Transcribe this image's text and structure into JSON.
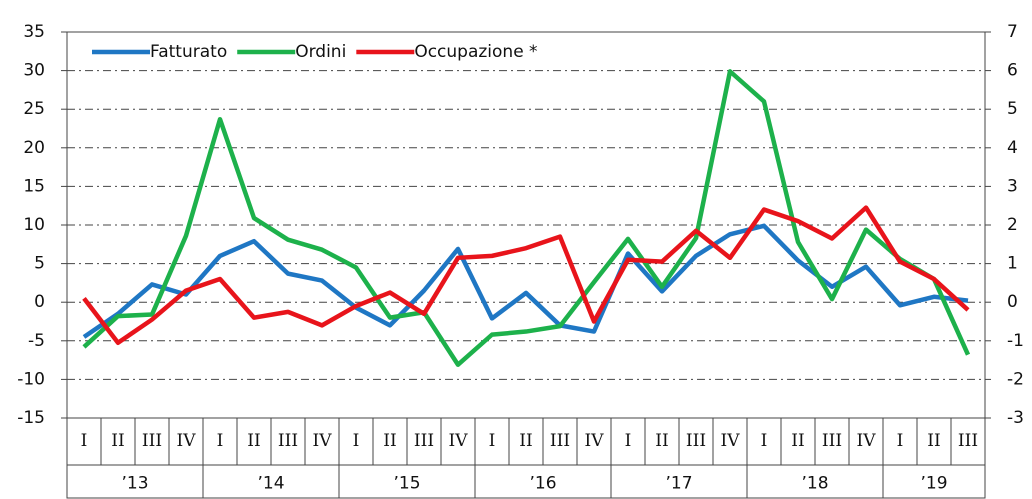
{
  "chart_data": {
    "type": "line",
    "groups": [
      {
        "label": "’13",
        "categories": [
          "I",
          "II",
          "III",
          "IV"
        ]
      },
      {
        "label": "’14",
        "categories": [
          "I",
          "II",
          "III",
          "IV"
        ]
      },
      {
        "label": "’15",
        "categories": [
          "I",
          "II",
          "III",
          "IV"
        ]
      },
      {
        "label": "’16",
        "categories": [
          "I",
          "II",
          "III",
          "IV"
        ]
      },
      {
        "label": "’17",
        "categories": [
          "I",
          "II",
          "III",
          "IV"
        ]
      },
      {
        "label": "’18",
        "categories": [
          "I",
          "II",
          "III",
          "IV"
        ]
      },
      {
        "label": "’19",
        "categories": [
          "I",
          "II",
          "III"
        ]
      }
    ],
    "series": [
      {
        "name": "Fatturato",
        "color": "#1f77c4",
        "values": [
          -4.5,
          -1.5,
          2.3,
          1.0,
          6.0,
          7.9,
          3.7,
          2.8,
          -0.7,
          -3.0,
          1.5,
          6.9,
          -2.1,
          1.2,
          -3.0,
          -3.8,
          6.3,
          1.4,
          6.0,
          8.8,
          9.9,
          5.4,
          2.0,
          4.6,
          -0.4,
          0.7,
          0.2
        ]
      },
      {
        "name": "Ordini",
        "color": "#1db14b",
        "values": [
          -5.8,
          -1.8,
          -1.6,
          8.6,
          23.7,
          10.9,
          8.1,
          6.8,
          4.5,
          -2.0,
          -1.3,
          -8.1,
          -4.2,
          -3.8,
          -3.1,
          2.6,
          8.2,
          2.0,
          8.3,
          29.9,
          26.0,
          7.8,
          0.4,
          9.4,
          5.6,
          3.0,
          -6.8
        ]
      },
      {
        "name": "Occupazione *",
        "color": "#e8141b",
        "axis": "y2",
        "values": [
          0.1,
          -1.05,
          -0.45,
          0.3,
          0.6,
          -0.4,
          -0.25,
          -0.6,
          -0.1,
          0.25,
          -0.3,
          1.15,
          1.2,
          1.4,
          1.7,
          -0.5,
          1.1,
          1.05,
          1.85,
          1.15,
          2.4,
          2.1,
          1.65,
          2.45,
          1.05,
          0.6,
          -0.2
        ]
      }
    ],
    "ylim": [
      -15,
      35
    ],
    "yticks": [
      -15,
      -10,
      -5,
      0,
      5,
      10,
      15,
      20,
      25,
      30,
      35
    ],
    "y2lim": [
      -3,
      7
    ],
    "y2ticks": [
      -3,
      -2,
      -1,
      0,
      1,
      2,
      3,
      4,
      5,
      6,
      7
    ],
    "grid": true,
    "legend": "top-left"
  }
}
